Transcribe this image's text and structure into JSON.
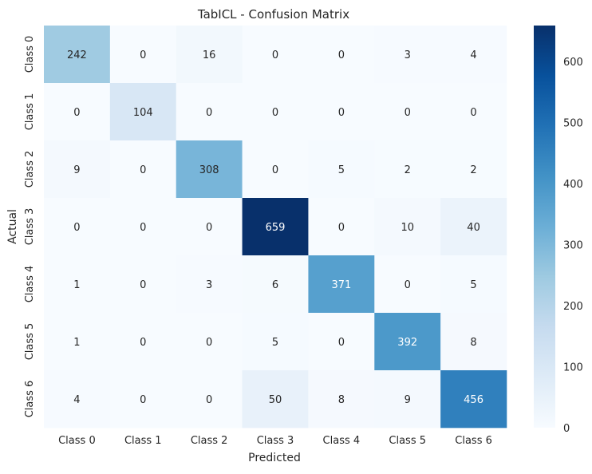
{
  "chart_data": {
    "type": "heatmap",
    "title": "TabICL - Confusion Matrix",
    "xlabel": "Predicted",
    "ylabel": "Actual",
    "x_labels": [
      "Class 0",
      "Class 1",
      "Class 2",
      "Class 3",
      "Class 4",
      "Class 5",
      "Class 6"
    ],
    "y_labels": [
      "Class 0",
      "Class 1",
      "Class 2",
      "Class 3",
      "Class 4",
      "Class 5",
      "Class 6"
    ],
    "matrix": [
      [
        242,
        0,
        16,
        0,
        0,
        3,
        4
      ],
      [
        0,
        104,
        0,
        0,
        0,
        0,
        0
      ],
      [
        9,
        0,
        308,
        0,
        5,
        2,
        2
      ],
      [
        0,
        0,
        0,
        659,
        0,
        10,
        40
      ],
      [
        1,
        0,
        3,
        6,
        371,
        0,
        5
      ],
      [
        1,
        0,
        0,
        5,
        0,
        392,
        8
      ],
      [
        4,
        0,
        0,
        50,
        8,
        9,
        456
      ]
    ],
    "colormap": "Blues",
    "value_range": [
      0,
      659
    ],
    "colorbar": {
      "ticks": [
        0,
        100,
        200,
        300,
        400,
        500,
        600
      ]
    }
  }
}
